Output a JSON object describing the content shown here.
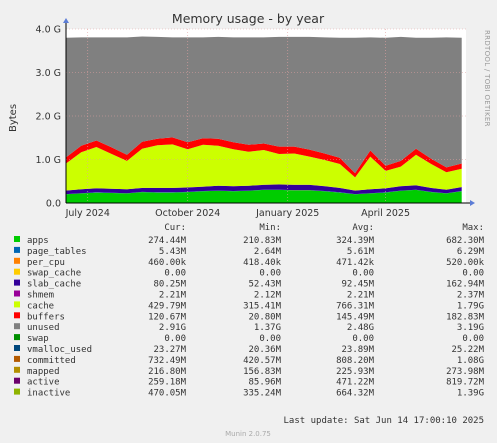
{
  "chart_data": {
    "type": "area",
    "title": "Memory usage - by year",
    "ylabel": "Bytes",
    "side_label": "RRDTOOL / TOBI OETIKER",
    "ylim": [
      0,
      4.0
    ],
    "y_ticks": [
      {
        "v": 0.0,
        "label": "0.0"
      },
      {
        "v": 1.0,
        "label": "1.0 G"
      },
      {
        "v": 2.0,
        "label": "2.0 G"
      },
      {
        "v": 3.0,
        "label": "3.0 G"
      },
      {
        "v": 4.0,
        "label": "4.0 G"
      }
    ],
    "x_range": [
      "2024-06-11",
      "2025-06-14"
    ],
    "x_ticks": [
      {
        "date": "2024-07-01",
        "label": "July 2024"
      },
      {
        "date": "2024-10-01",
        "label": "October 2024"
      },
      {
        "date": "2025-01-01",
        "label": "January 2025"
      },
      {
        "date": "2025-04-01",
        "label": "April 2025"
      }
    ],
    "x": [
      "2024-06-11",
      "2024-06-25",
      "2024-07-09",
      "2024-07-23",
      "2024-08-06",
      "2024-08-20",
      "2024-09-03",
      "2024-09-17",
      "2024-10-01",
      "2024-10-15",
      "2024-10-29",
      "2024-11-12",
      "2024-11-26",
      "2024-12-10",
      "2024-12-24",
      "2025-01-07",
      "2025-01-21",
      "2025-02-04",
      "2025-02-18",
      "2025-03-04",
      "2025-03-18",
      "2025-04-01",
      "2025-04-15",
      "2025-04-29",
      "2025-05-13",
      "2025-05-27",
      "2025-06-10"
    ],
    "total": 3.8,
    "series": [
      {
        "name": "apps",
        "color": "#00cc00",
        "values": [
          0.2,
          0.22,
          0.24,
          0.23,
          0.22,
          0.25,
          0.24,
          0.24,
          0.25,
          0.27,
          0.28,
          0.27,
          0.28,
          0.3,
          0.3,
          0.29,
          0.29,
          0.27,
          0.24,
          0.2,
          0.22,
          0.24,
          0.28,
          0.3,
          0.25,
          0.22,
          0.27
        ]
      },
      {
        "name": "page_tables",
        "color": "#0066b3",
        "values": [
          0.005,
          0.005,
          0.005,
          0.005,
          0.005,
          0.005,
          0.005,
          0.005,
          0.005,
          0.005,
          0.005,
          0.005,
          0.005,
          0.005,
          0.005,
          0.005,
          0.005,
          0.005,
          0.005,
          0.005,
          0.005,
          0.005,
          0.005,
          0.005,
          0.005,
          0.005,
          0.005
        ]
      },
      {
        "name": "per_cpu",
        "color": "#ff8000",
        "values": [
          0.0005,
          0.0005,
          0.0005,
          0.0005,
          0.0005,
          0.0005,
          0.0005,
          0.0005,
          0.0005,
          0.0005,
          0.0005,
          0.0005,
          0.0005,
          0.0005,
          0.0005,
          0.0005,
          0.0005,
          0.0005,
          0.0005,
          0.0005,
          0.0005,
          0.0005,
          0.0005,
          0.0005,
          0.0005,
          0.0005,
          0.0005
        ]
      },
      {
        "name": "swap_cache",
        "color": "#ffcc00",
        "values": [
          0,
          0,
          0,
          0,
          0,
          0,
          0,
          0,
          0,
          0,
          0,
          0,
          0,
          0,
          0,
          0,
          0,
          0,
          0,
          0,
          0,
          0,
          0,
          0,
          0,
          0,
          0
        ]
      },
      {
        "name": "slab_cache",
        "color": "#330099",
        "values": [
          0.08,
          0.09,
          0.09,
          0.09,
          0.09,
          0.09,
          0.1,
          0.1,
          0.1,
          0.1,
          0.11,
          0.11,
          0.11,
          0.11,
          0.12,
          0.12,
          0.12,
          0.11,
          0.1,
          0.08,
          0.09,
          0.09,
          0.1,
          0.1,
          0.09,
          0.08,
          0.09
        ]
      },
      {
        "name": "shmem",
        "color": "#990099",
        "values": [
          0.002,
          0.002,
          0.002,
          0.002,
          0.002,
          0.002,
          0.002,
          0.002,
          0.002,
          0.002,
          0.002,
          0.002,
          0.002,
          0.002,
          0.002,
          0.002,
          0.002,
          0.002,
          0.002,
          0.002,
          0.002,
          0.002,
          0.002,
          0.002,
          0.002,
          0.002,
          0.002
        ]
      },
      {
        "name": "cache",
        "color": "#ccff00",
        "values": [
          0.62,
          0.85,
          0.95,
          0.8,
          0.65,
          0.9,
          0.98,
          1.0,
          0.88,
          0.96,
          0.92,
          0.85,
          0.78,
          0.8,
          0.7,
          0.72,
          0.65,
          0.6,
          0.55,
          0.3,
          0.75,
          0.4,
          0.45,
          0.7,
          0.55,
          0.4,
          0.42
        ]
      },
      {
        "name": "buffers",
        "color": "#ff0000",
        "values": [
          0.14,
          0.15,
          0.15,
          0.15,
          0.14,
          0.16,
          0.15,
          0.16,
          0.16,
          0.15,
          0.16,
          0.16,
          0.16,
          0.15,
          0.17,
          0.16,
          0.16,
          0.15,
          0.14,
          0.1,
          0.14,
          0.12,
          0.13,
          0.14,
          0.12,
          0.11,
          0.12
        ]
      },
      {
        "name": "unused",
        "color": "#808080",
        "values": [
          2.75,
          2.49,
          2.37,
          2.53,
          2.7,
          2.42,
          2.34,
          2.3,
          2.41,
          2.32,
          2.34,
          2.41,
          2.47,
          2.44,
          2.52,
          2.52,
          2.59,
          2.67,
          2.76,
          3.11,
          2.6,
          2.94,
          2.85,
          2.55,
          2.78,
          2.99,
          2.89
        ]
      },
      {
        "name": "swap",
        "color": "#008f00",
        "values": [
          0,
          0,
          0,
          0,
          0,
          0,
          0,
          0,
          0,
          0,
          0,
          0,
          0,
          0,
          0,
          0,
          0,
          0,
          0,
          0,
          0,
          0,
          0,
          0,
          0,
          0,
          0
        ]
      }
    ],
    "legend": {
      "headers": [
        "Cur:",
        "Min:",
        "Avg:",
        "Max:"
      ],
      "rows": [
        {
          "name": "apps",
          "color": "#00cc00",
          "cur": "274.44M",
          "min": "210.83M",
          "avg": "324.39M",
          "max": "682.30M"
        },
        {
          "name": "page_tables",
          "color": "#0066b3",
          "cur": "5.43M",
          "min": "2.64M",
          "avg": "5.61M",
          "max": "6.29M"
        },
        {
          "name": "per_cpu",
          "color": "#ff8000",
          "cur": "460.00k",
          "min": "418.40k",
          "avg": "471.42k",
          "max": "520.00k"
        },
        {
          "name": "swap_cache",
          "color": "#ffcc00",
          "cur": "0.00",
          "min": "0.00",
          "avg": "0.00",
          "max": "0.00"
        },
        {
          "name": "slab_cache",
          "color": "#330099",
          "cur": "80.25M",
          "min": "52.43M",
          "avg": "92.45M",
          "max": "162.94M"
        },
        {
          "name": "shmem",
          "color": "#990099",
          "cur": "2.21M",
          "min": "2.12M",
          "avg": "2.21M",
          "max": "2.37M"
        },
        {
          "name": "cache",
          "color": "#ccff00",
          "cur": "429.79M",
          "min": "315.41M",
          "avg": "766.31M",
          "max": "1.79G"
        },
        {
          "name": "buffers",
          "color": "#ff0000",
          "cur": "120.67M",
          "min": "20.80M",
          "avg": "145.49M",
          "max": "182.83M"
        },
        {
          "name": "unused",
          "color": "#808080",
          "cur": "2.91G",
          "min": "1.37G",
          "avg": "2.48G",
          "max": "3.19G"
        },
        {
          "name": "swap",
          "color": "#008f00",
          "cur": "0.00",
          "min": "0.00",
          "avg": "0.00",
          "max": "0.00"
        },
        {
          "name": "vmalloc_used",
          "color": "#00487d",
          "cur": "23.27M",
          "min": "20.36M",
          "avg": "23.89M",
          "max": "25.22M"
        },
        {
          "name": "committed",
          "color": "#b35a00",
          "cur": "732.49M",
          "min": "420.57M",
          "avg": "808.20M",
          "max": "1.08G"
        },
        {
          "name": "mapped",
          "color": "#b38f00",
          "cur": "216.80M",
          "min": "156.83M",
          "avg": "225.93M",
          "max": "273.98M"
        },
        {
          "name": "active",
          "color": "#6b006b",
          "cur": "259.18M",
          "min": "85.96M",
          "avg": "471.22M",
          "max": "819.72M"
        },
        {
          "name": "inactive",
          "color": "#8fb300",
          "cur": "470.05M",
          "min": "335.24M",
          "avg": "664.32M",
          "max": "1.39G"
        }
      ]
    },
    "footer": "Last update: Sat Jun 14 17:00:10 2025",
    "munin": "Munin 2.0.75"
  }
}
